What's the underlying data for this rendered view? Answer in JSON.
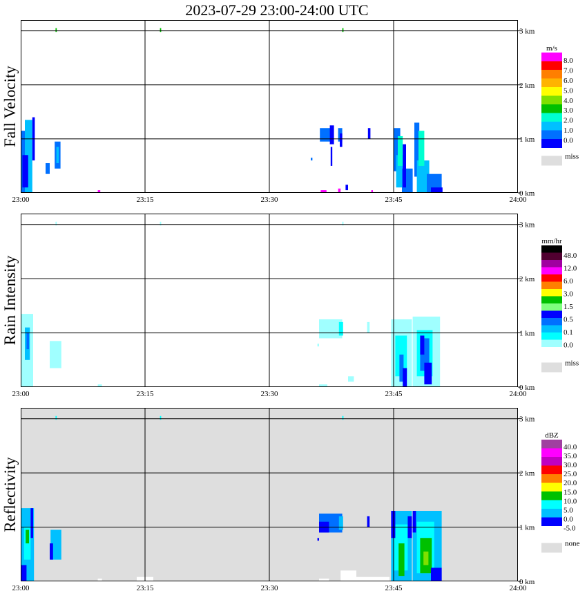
{
  "title": "2023-07-29  23:00-24:00 UTC",
  "colors": {
    "background": "#ffffff",
    "plot_bg_velocity": "#ffffff",
    "plot_bg_rain": "#ffffff",
    "plot_bg_reflectivity": "#dedede",
    "grid": "#000000",
    "missing": "#dedede"
  },
  "chart_data": [
    {
      "type": "heatmap",
      "name": "velocity",
      "ylabel": "Fall Velocity",
      "x_ticks": [
        "23:00",
        "23:15",
        "23:30",
        "23:45",
        "24:00"
      ],
      "x_range_min": [
        0,
        60
      ],
      "y_ticks": [
        "0 km",
        "1 km",
        "2 km",
        "3 km"
      ],
      "y_range_km": [
        0,
        3.2
      ],
      "grid": true,
      "colorbar": {
        "unit": "m/s",
        "labels": [
          "8.0",
          "7.0",
          "6.0",
          "5.0",
          "4.0",
          "3.0",
          "2.0",
          "1.0",
          "0.0"
        ],
        "colors": [
          "#ff00ff",
          "#ff0000",
          "#ff7f00",
          "#ffb400",
          "#ffff00",
          "#7fe000",
          "#00c000",
          "#00ffd0",
          "#00c0ff",
          "#0070ff",
          "#0000ff"
        ],
        "missing_label": "miss"
      },
      "cells": [
        [
          0.0,
          0.0,
          0.5,
          1.15,
          "#0070ff"
        ],
        [
          0.5,
          0.0,
          1.4,
          1.35,
          "#00c0ff"
        ],
        [
          1.4,
          0.6,
          1.7,
          1.4,
          "#0000ff"
        ],
        [
          0.2,
          0.1,
          0.9,
          0.7,
          "#0000ff"
        ],
        [
          3.0,
          0.35,
          3.5,
          0.55,
          "#0070ff"
        ],
        [
          4.1,
          0.45,
          4.8,
          0.95,
          "#0070ff"
        ],
        [
          4.3,
          0.55,
          4.6,
          0.85,
          "#00c0ff"
        ],
        [
          4.2,
          2.98,
          4.35,
          3.05,
          "#00c000"
        ],
        [
          16.8,
          2.98,
          16.95,
          3.05,
          "#00c000"
        ],
        [
          38.8,
          2.98,
          38.95,
          3.05,
          "#00c000"
        ],
        [
          9.3,
          0.0,
          9.6,
          0.05,
          "#ff00ff"
        ],
        [
          36.1,
          0.95,
          37.5,
          1.2,
          "#0070ff"
        ],
        [
          37.3,
          0.9,
          37.8,
          1.25,
          "#0000ff"
        ],
        [
          38.3,
          0.95,
          38.8,
          1.2,
          "#0070ff"
        ],
        [
          38.5,
          0.85,
          38.8,
          1.1,
          "#0000ff"
        ],
        [
          37.4,
          0.5,
          37.6,
          0.85,
          "#0000ff"
        ],
        [
          35.0,
          0.6,
          35.2,
          0.65,
          "#0070ff"
        ],
        [
          41.9,
          1.0,
          42.2,
          1.2,
          "#0000ff"
        ],
        [
          36.2,
          0.0,
          36.9,
          0.05,
          "#ff00ff"
        ],
        [
          38.3,
          0.0,
          38.6,
          0.08,
          "#ff00ff"
        ],
        [
          39.2,
          0.05,
          39.5,
          0.15,
          "#0000ff"
        ],
        [
          42.3,
          0.0,
          42.5,
          0.05,
          "#ff00ff"
        ],
        [
          45.0,
          0.4,
          45.8,
          1.2,
          "#0070ff"
        ],
        [
          45.3,
          0.1,
          46.2,
          0.7,
          "#00c0ff"
        ],
        [
          45.5,
          0.5,
          46.1,
          1.05,
          "#00ffd0"
        ],
        [
          46.0,
          0.0,
          47.3,
          0.45,
          "#0070ff"
        ],
        [
          47.5,
          0.3,
          48.1,
          1.3,
          "#0070ff"
        ],
        [
          47.8,
          0.0,
          49.3,
          0.6,
          "#00c0ff"
        ],
        [
          48.0,
          0.5,
          48.7,
          1.15,
          "#00ffd0"
        ],
        [
          49.0,
          0.0,
          50.8,
          0.35,
          "#0070ff"
        ],
        [
          49.5,
          0.0,
          50.9,
          0.1,
          "#0000ff"
        ],
        [
          46.1,
          0.1,
          46.5,
          0.9,
          "#0000ff"
        ]
      ]
    },
    {
      "type": "heatmap",
      "name": "rain",
      "ylabel": "Rain Intensity",
      "x_ticks": [
        "23:00",
        "23:15",
        "23:30",
        "23:45",
        "24:00"
      ],
      "x_range_min": [
        0,
        60
      ],
      "y_ticks": [
        "0 km",
        "1 km",
        "2 km",
        "3 km"
      ],
      "y_range_km": [
        0,
        3.2
      ],
      "grid": true,
      "colorbar": {
        "unit": "mm/hr",
        "labels": [
          "48.0",
          "12.0",
          "6.0",
          "3.0",
          "1.5",
          "0.5",
          "0.1",
          "0.0"
        ],
        "colors": [
          "#000000",
          "#500030",
          "#a000a0",
          "#ff00ff",
          "#ff0000",
          "#ff7f00",
          "#ffff00",
          "#00c000",
          "#7fff7f",
          "#0000ff",
          "#0070ff",
          "#00c0ff",
          "#00ffff",
          "#a0ffff",
          "#ffffff"
        ],
        "missing_label": "miss"
      },
      "cells": [
        [
          0.0,
          0.0,
          1.5,
          1.35,
          "#a0ffff"
        ],
        [
          0.5,
          0.5,
          1.1,
          1.1,
          "#00c0ff"
        ],
        [
          0.7,
          0.7,
          1.0,
          1.0,
          "#0070ff"
        ],
        [
          3.5,
          0.35,
          4.9,
          0.85,
          "#a0ffff"
        ],
        [
          4.2,
          2.98,
          4.35,
          3.05,
          "#a0ffff"
        ],
        [
          16.8,
          2.98,
          16.95,
          3.05,
          "#a0ffff"
        ],
        [
          38.8,
          2.98,
          38.95,
          3.05,
          "#a0ffff"
        ],
        [
          9.3,
          0.0,
          9.8,
          0.05,
          "#a0ffff"
        ],
        [
          36.0,
          0.9,
          38.8,
          1.25,
          "#a0ffff"
        ],
        [
          38.4,
          0.95,
          38.9,
          1.2,
          "#00ffff"
        ],
        [
          41.8,
          1.0,
          42.1,
          1.2,
          "#a0ffff"
        ],
        [
          35.8,
          0.75,
          36.0,
          0.8,
          "#a0ffff"
        ],
        [
          39.5,
          0.1,
          40.2,
          0.2,
          "#a0ffff"
        ],
        [
          36.0,
          0.0,
          37.0,
          0.05,
          "#a0ffff"
        ],
        [
          44.7,
          0.0,
          47.2,
          1.25,
          "#a0ffff"
        ],
        [
          45.2,
          0.2,
          46.6,
          0.95,
          "#00ffff"
        ],
        [
          45.7,
          0.1,
          46.2,
          0.6,
          "#0070ff"
        ],
        [
          46.1,
          0.0,
          46.6,
          0.35,
          "#0000ff"
        ],
        [
          47.3,
          0.0,
          50.6,
          1.3,
          "#a0ffff"
        ],
        [
          47.8,
          0.2,
          49.7,
          1.05,
          "#00ffff"
        ],
        [
          48.2,
          0.3,
          49.3,
          0.9,
          "#0070ff"
        ],
        [
          48.7,
          0.05,
          49.6,
          0.45,
          "#0000ff"
        ],
        [
          48.2,
          0.6,
          48.7,
          0.95,
          "#0000ff"
        ]
      ]
    },
    {
      "type": "heatmap",
      "name": "reflectivity",
      "ylabel": "Reflectivity",
      "x_ticks": [
        "23:00",
        "23:15",
        "23:30",
        "23:45",
        "24:00"
      ],
      "x_range_min": [
        0,
        60
      ],
      "y_ticks": [
        "0 km",
        "1 km",
        "2 km",
        "3 km"
      ],
      "y_range_km": [
        0,
        3.2
      ],
      "grid": true,
      "colorbar": {
        "unit": "dBZ",
        "labels": [
          "40.0",
          "35.0",
          "30.0",
          "25.0",
          "20.0",
          "15.0",
          "10.0",
          "5.0",
          "0.0",
          "-5.0"
        ],
        "colors": [
          "#a040a0",
          "#ff00ff",
          "#c000c0",
          "#ff0000",
          "#ff7f00",
          "#ffff00",
          "#00c000",
          "#00ffff",
          "#00c0ff",
          "#0000ff",
          "#ffffff"
        ],
        "missing_label": "none"
      },
      "cells": [
        [
          0.0,
          0.0,
          1.6,
          1.35,
          "#00c0ff"
        ],
        [
          0.4,
          0.4,
          1.2,
          1.0,
          "#00ffff"
        ],
        [
          0.6,
          0.7,
          1.0,
          0.95,
          "#00c000"
        ],
        [
          0.0,
          0.0,
          0.7,
          0.3,
          "#0000ff"
        ],
        [
          1.2,
          0.8,
          1.5,
          1.35,
          "#0000ff"
        ],
        [
          3.6,
          0.4,
          4.9,
          0.95,
          "#00c0ff"
        ],
        [
          3.5,
          0.4,
          3.9,
          0.7,
          "#0000ff"
        ],
        [
          4.2,
          2.98,
          4.35,
          3.05,
          "#00ffff"
        ],
        [
          16.8,
          2.98,
          16.95,
          3.05,
          "#00ffff"
        ],
        [
          38.8,
          2.98,
          38.95,
          3.05,
          "#00ffff"
        ],
        [
          9.3,
          0.0,
          9.8,
          0.05,
          "#ffffff"
        ],
        [
          14.0,
          0.0,
          16.0,
          0.08,
          "#ffffff"
        ],
        [
          36.0,
          0.9,
          38.8,
          1.25,
          "#0070ff"
        ],
        [
          36.0,
          0.9,
          37.2,
          1.1,
          "#0000ff"
        ],
        [
          38.4,
          0.95,
          38.9,
          1.2,
          "#00c0ff"
        ],
        [
          41.8,
          1.0,
          42.1,
          1.2,
          "#0000ff"
        ],
        [
          35.8,
          0.75,
          36.0,
          0.8,
          "#0000ff"
        ],
        [
          38.6,
          0.0,
          40.5,
          0.2,
          "#ffffff"
        ],
        [
          40.0,
          0.0,
          44.5,
          0.08,
          "#ffffff"
        ],
        [
          36.0,
          0.0,
          37.2,
          0.05,
          "#ffffff"
        ],
        [
          44.7,
          0.0,
          47.2,
          1.3,
          "#00c0ff"
        ],
        [
          45.0,
          0.2,
          46.7,
          1.05,
          "#00ffff"
        ],
        [
          45.6,
          0.1,
          46.3,
          0.7,
          "#00c000"
        ],
        [
          44.7,
          0.8,
          45.2,
          1.3,
          "#0000ff"
        ],
        [
          46.7,
          0.8,
          47.2,
          1.2,
          "#0000ff"
        ],
        [
          47.3,
          0.0,
          50.8,
          1.3,
          "#00c0ff"
        ],
        [
          47.8,
          0.15,
          49.9,
          1.1,
          "#00ffff"
        ],
        [
          48.2,
          0.15,
          49.6,
          0.8,
          "#00c000"
        ],
        [
          48.6,
          0.3,
          49.2,
          0.55,
          "#7fe000"
        ],
        [
          49.5,
          0.0,
          50.8,
          0.25,
          "#0000ff"
        ],
        [
          47.3,
          0.9,
          47.7,
          1.3,
          "#0000ff"
        ]
      ]
    }
  ]
}
